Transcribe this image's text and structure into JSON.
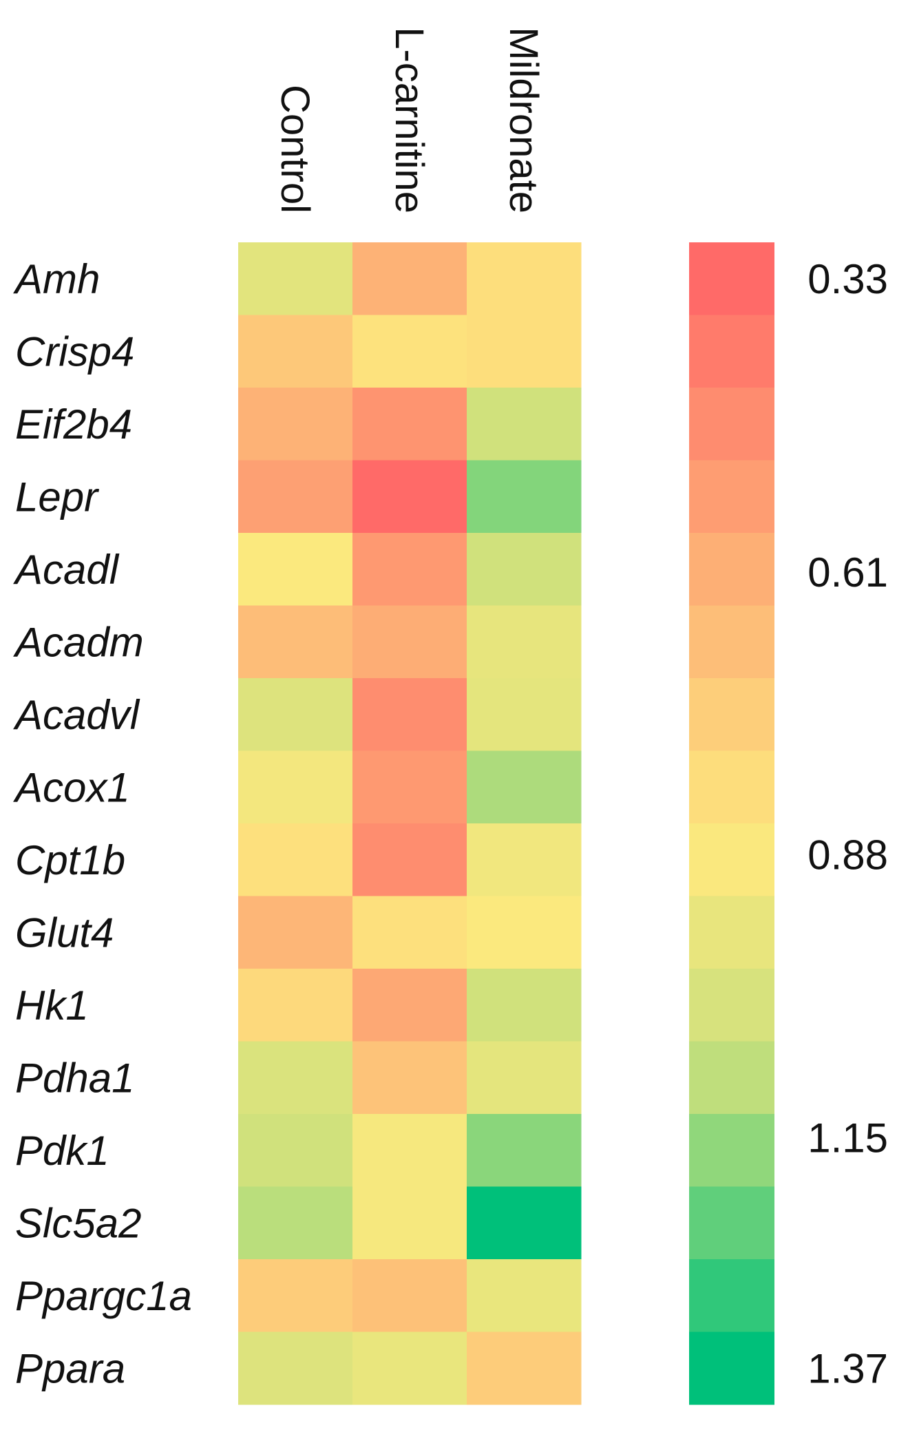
{
  "chart_data": {
    "type": "heatmap",
    "columns": [
      "Control",
      "L-carnitine",
      "Mildronate"
    ],
    "rows": [
      "Amh",
      "Crisp4",
      "Eif2b4",
      "Lepr",
      "Acadl",
      "Acadm",
      "Acadvl",
      "Acox1",
      "Cpt1b",
      "Glut4",
      "Hk1",
      "Pdha1",
      "Pdk1",
      "Slc5a2",
      "Ppargc1a",
      "Ppara"
    ],
    "values": [
      [
        0.98,
        0.62,
        0.82
      ],
      [
        0.72,
        0.84,
        0.82
      ],
      [
        0.62,
        0.5,
        1.05
      ],
      [
        0.55,
        0.33,
        1.18
      ],
      [
        0.88,
        0.52,
        1.05
      ],
      [
        0.67,
        0.6,
        0.96
      ],
      [
        1.0,
        0.47,
        0.97
      ],
      [
        0.91,
        0.52,
        1.12
      ],
      [
        0.83,
        0.47,
        0.92
      ],
      [
        0.64,
        0.83,
        0.88
      ],
      [
        0.8,
        0.58,
        1.05
      ],
      [
        1.01,
        0.7,
        0.97
      ],
      [
        1.05,
        0.9,
        1.17
      ],
      [
        1.1,
        0.9,
        1.37
      ],
      [
        0.74,
        0.69,
        0.95
      ],
      [
        1.0,
        0.95,
        0.74
      ]
    ],
    "colorbar": {
      "min": 0.33,
      "max": 1.37,
      "ticks": [
        "0.33",
        "0.61",
        "0.88",
        "1.15",
        "1.37"
      ],
      "tick_values": [
        0.33,
        0.61,
        0.88,
        1.15,
        1.37
      ],
      "steps": 16
    },
    "colors": {
      "low": "#ff6a68",
      "orange": "#fdb276",
      "mid": "#fde97e",
      "light_green": "#c9e07c",
      "high": "#00c07a"
    }
  }
}
